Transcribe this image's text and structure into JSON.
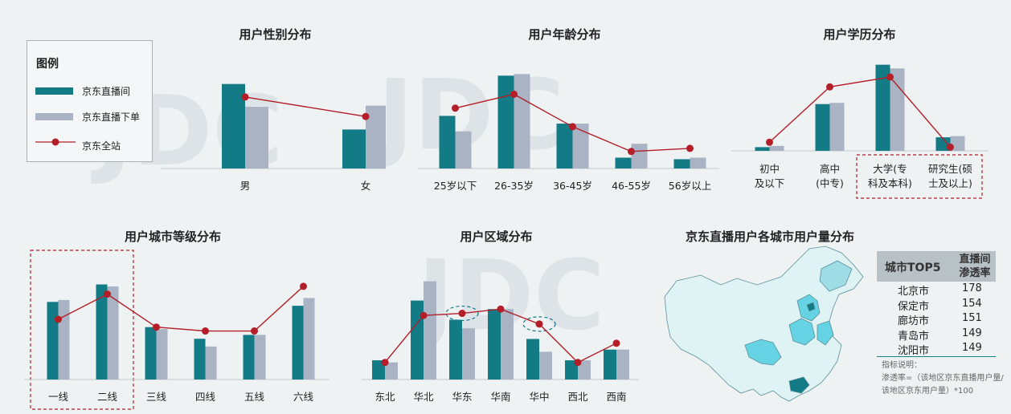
{
  "colors": {
    "live": "#137b86",
    "order": "#aab3c4",
    "site": "#b31e28",
    "map_highlight": "#65d3e3",
    "map_dark": "#137b86",
    "map_light": "#dff3f5"
  },
  "legend": {
    "title": "图例",
    "items": [
      "京东直播间",
      "京东直播下单",
      "京东全站"
    ]
  },
  "chart_data": [
    {
      "id": "gender",
      "type": "bar",
      "title": "用户性别分布",
      "categories": [
        "男",
        "女"
      ],
      "series": [
        {
          "name": "京东直播间",
          "values": [
            78,
            36
          ]
        },
        {
          "name": "京东直播下单",
          "values": [
            57,
            58
          ]
        },
        {
          "name": "京东全站",
          "type": "line",
          "values": [
            66,
            48
          ]
        }
      ],
      "ylim": [
        0,
        100
      ]
    },
    {
      "id": "age",
      "type": "bar",
      "title": "用户年龄分布",
      "categories": [
        "25岁以下",
        "26-35岁",
        "36-45岁",
        "46-55岁",
        "56岁以上"
      ],
      "series": [
        {
          "name": "京东直播间",
          "values": [
            34,
            60,
            29,
            7,
            6
          ]
        },
        {
          "name": "京东直播下单",
          "values": [
            24,
            61,
            29,
            16,
            7
          ]
        },
        {
          "name": "京东全站",
          "values": [
            39,
            48,
            27,
            11,
            13
          ]
        }
      ],
      "ylim": [
        0,
        70
      ]
    },
    {
      "id": "education",
      "type": "bar",
      "title": "用户学历分布",
      "categories": [
        "初中\n及以下",
        "高中\n(中专)",
        "大学(专\n科及本科)",
        "研究生(硕\n士及以上)"
      ],
      "series": [
        {
          "name": "京东直播间",
          "values": [
            3,
            38,
            70,
            11
          ]
        },
        {
          "name": "京东直播下单",
          "values": [
            4,
            39,
            67,
            12
          ]
        },
        {
          "name": "京东全站",
          "values": [
            7,
            52,
            60,
            3
          ]
        }
      ],
      "highlight": [
        2,
        3
      ],
      "ylim": [
        0,
        75
      ]
    },
    {
      "id": "city_tier",
      "type": "bar",
      "title": "用户城市等级分布",
      "categories": [
        "一线",
        "二线",
        "三线",
        "四线",
        "五线",
        "六线"
      ],
      "series": [
        {
          "name": "京东直播间",
          "values": [
            40,
            49,
            27,
            21,
            23,
            38
          ]
        },
        {
          "name": "京东直播下单",
          "values": [
            41,
            48,
            26,
            17,
            23,
            42
          ]
        },
        {
          "name": "京东全站",
          "values": [
            31,
            44,
            27,
            25,
            25,
            48
          ]
        }
      ],
      "highlight": [
        0,
        1
      ],
      "ylim": [
        0,
        55
      ]
    },
    {
      "id": "region",
      "type": "bar",
      "title": "用户区域分布",
      "categories": [
        "东北",
        "华北",
        "华东",
        "华南",
        "华中",
        "西北",
        "西南"
      ],
      "series": [
        {
          "name": "京东直播间",
          "values": [
            9,
            37,
            28,
            33,
            19,
            9,
            14
          ]
        },
        {
          "name": "京东直播下单",
          "values": [
            8,
            46,
            24,
            33,
            13,
            9,
            14
          ]
        },
        {
          "name": "京东全站",
          "values": [
            8,
            30,
            31,
            33,
            26,
            8,
            17
          ]
        }
      ],
      "highlight": [
        2,
        4
      ],
      "ylim": [
        0,
        50
      ]
    }
  ],
  "map": {
    "title": "京东直播用户各城市用户量分布"
  },
  "city_table": {
    "header_city": "城市TOP5",
    "header_rate": "直播间\n渗透率",
    "rows": [
      {
        "city": "北京市",
        "rate": "178"
      },
      {
        "city": "保定市",
        "rate": "154"
      },
      {
        "city": "廊坊市",
        "rate": "151"
      },
      {
        "city": "青岛市",
        "rate": "149"
      },
      {
        "city": "沈阳市",
        "rate": "149"
      }
    ],
    "note": "指标说明：\n渗透率=（该地区京东直播用户量/该地区京东用户量）*100"
  }
}
